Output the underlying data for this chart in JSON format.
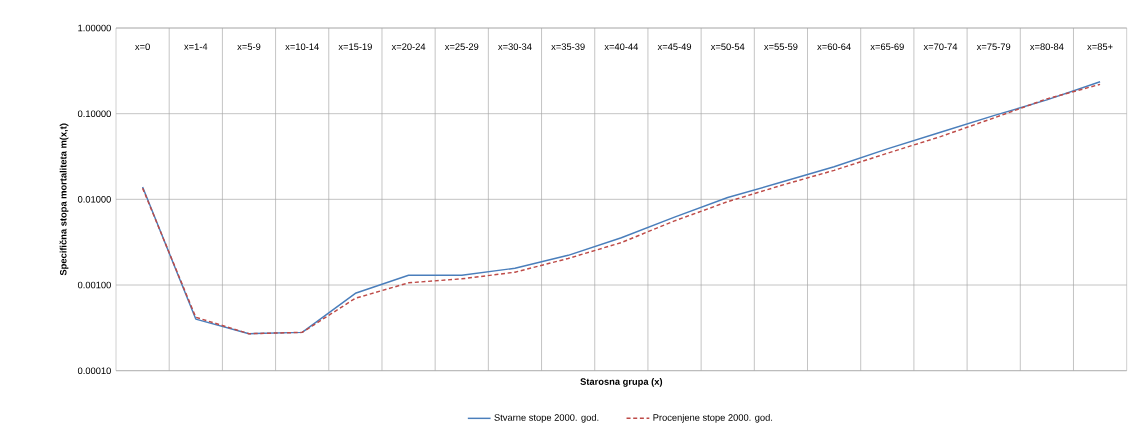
{
  "chart_data": {
    "type": "line",
    "xlabel": "Starosna grupa (x)",
    "ylabel": "Specifična  stopa mortaliteta m(x,t)",
    "categories": [
      "x=0",
      "x=1-4",
      "x=5-9",
      "x=10-14",
      "x=15-19",
      "x=20-24",
      "x=25-29",
      "x=30-34",
      "x=35-39",
      "x=40-44",
      "x=45-49",
      "x=50-54",
      "x=55-59",
      "x=60-64",
      "x=65-69",
      "x=70-74",
      "x=75-79",
      "x=80-84",
      "x=85+"
    ],
    "series": [
      {
        "name": "Stvarne stope 2000. god.",
        "color": "#4a7ebb",
        "line_style": "solid",
        "values": [
          0.0139,
          0.0004,
          0.00027,
          0.00028,
          0.0008,
          0.0013,
          0.0013,
          0.00157,
          0.00222,
          0.00356,
          0.0062,
          0.0105,
          0.0158,
          0.024,
          0.0388,
          0.0608,
          0.095,
          0.145,
          0.236
        ]
      },
      {
        "name": "Procenjene stope 2000. god.",
        "color": "#be4b48",
        "line_style": "dashed",
        "values": [
          0.0135,
          0.00042,
          0.00027,
          0.00028,
          0.0007,
          0.00106,
          0.00118,
          0.00141,
          0.00204,
          0.00313,
          0.0056,
          0.0094,
          0.0145,
          0.0218,
          0.0345,
          0.054,
          0.089,
          0.149,
          0.22
        ]
      }
    ],
    "log": "y",
    "ylim": [
      0.0001,
      1
    ],
    "yticks": [
      {
        "value": 0.0001,
        "label": "0.00010"
      },
      {
        "value": 0.001,
        "label": "0.00100"
      },
      {
        "value": 0.01,
        "label": "0.01000"
      },
      {
        "value": 0.1,
        "label": "0.10000"
      },
      {
        "value": 1,
        "label": "1.00000"
      }
    ],
    "grid": true,
    "legend": "bottom",
    "marker": "none"
  }
}
